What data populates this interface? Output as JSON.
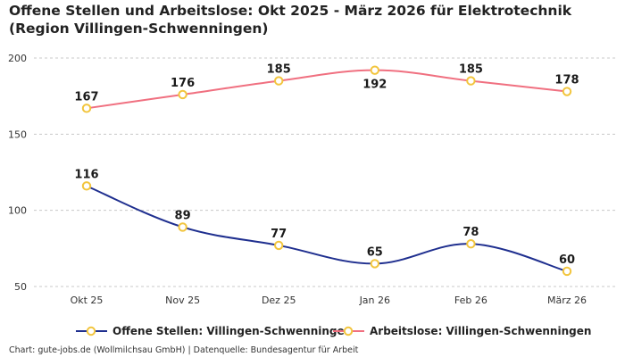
{
  "title": "Offene Stellen und Arbeitslose: Okt 2025 - März 2026 für Elektrotechnik (Region Villingen-Schwenningen)",
  "footer": "Chart: gute-jobs.de (Wollmilchsau GmbH) | Datenquelle: Bundesagentur für Arbeit",
  "chart_data": {
    "type": "line",
    "title": "Offene Stellen und Arbeitslose: Okt 2025 - März 2026 für Elektrotechnik (Region Villingen-Schwenningen)",
    "categories": [
      "Okt 25",
      "Nov 25",
      "Dez 25",
      "Jan 26",
      "Feb 26",
      "März 26"
    ],
    "series": [
      {
        "name": "Offene Stellen: Villingen-Schwenningen",
        "values": [
          116,
          89,
          77,
          65,
          78,
          60
        ],
        "color": "#1f2f8f",
        "label_pos": "above"
      },
      {
        "name": "Arbeitslose: Villingen-Schwenningen",
        "values": [
          167,
          176,
          185,
          192,
          185,
          178
        ],
        "color": "#f07080",
        "label_pos": [
          "above",
          "above",
          "above",
          "below",
          "above",
          "above"
        ]
      }
    ],
    "marker_color": "#f2c53d",
    "yticks": [
      50,
      100,
      150,
      200
    ],
    "ylim": [
      50,
      200
    ],
    "grid": true,
    "legend": "bottom"
  }
}
